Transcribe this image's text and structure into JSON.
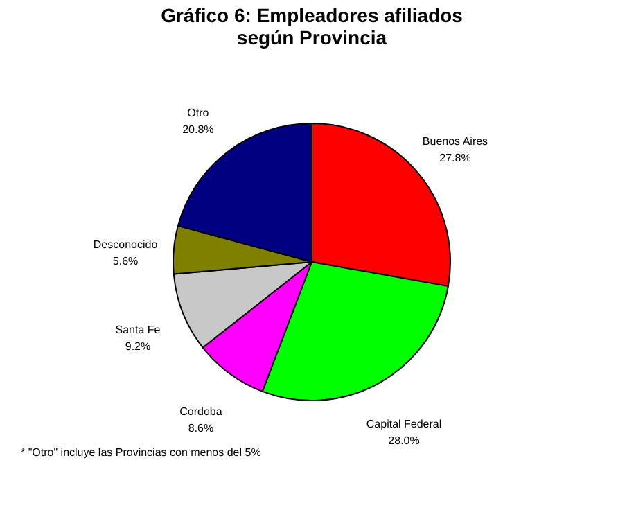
{
  "chart_data": {
    "type": "pie",
    "title": [
      "Gráfico 6: Empleadores afiliados",
      "según Provincia"
    ],
    "categories": [
      "Buenos Aires",
      "Capital Federal",
      "Cordoba",
      "Santa Fe",
      "Desconocido",
      "Otro"
    ],
    "values": [
      27.8,
      28.0,
      8.6,
      9.2,
      5.6,
      20.8
    ],
    "colors": [
      "#ff0000",
      "#00ff00",
      "#ff00ff",
      "#c8c8c8",
      "#808000",
      "#000080"
    ],
    "value_labels": [
      "27.8%",
      "28.0%",
      "8.6%",
      "9.2%",
      "5.6%",
      "20.8%"
    ],
    "legend": false,
    "annotations": [
      "* \"Otro\" incluye las Provincias con menos del 5%"
    ]
  }
}
